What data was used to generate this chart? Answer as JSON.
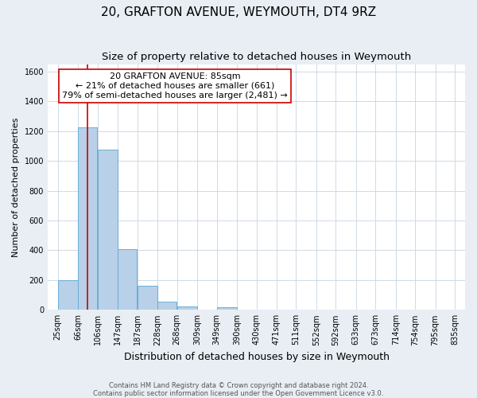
{
  "title": "20, GRAFTON AVENUE, WEYMOUTH, DT4 9RZ",
  "subtitle": "Size of property relative to detached houses in Weymouth",
  "xlabel": "Distribution of detached houses by size in Weymouth",
  "ylabel": "Number of detached properties",
  "footnote1": "Contains HM Land Registry data © Crown copyright and database right 2024.",
  "footnote2": "Contains public sector information licensed under the Open Government Licence v3.0.",
  "bins": [
    25,
    66,
    106,
    147,
    187,
    228,
    268,
    309,
    349,
    390,
    430,
    471,
    511,
    552,
    592,
    633,
    673,
    714,
    754,
    795,
    835
  ],
  "counts": [
    200,
    1225,
    1075,
    410,
    160,
    55,
    25,
    0,
    20,
    0,
    0,
    0,
    0,
    0,
    0,
    0,
    0,
    0,
    0,
    0
  ],
  "bar_color": "#b8d0e8",
  "bar_edge_color": "#6aaed6",
  "property_size": 85,
  "property_line_color": "#cc0000",
  "annotation_title": "20 GRAFTON AVENUE: 85sqm",
  "annotation_line1": "← 21% of detached houses are smaller (661)",
  "annotation_line2": "79% of semi-detached houses are larger (2,481) →",
  "annotation_box_color": "#ffffff",
  "annotation_box_edge_color": "#cc0000",
  "ylim": [
    0,
    1650
  ],
  "yticks": [
    0,
    200,
    400,
    600,
    800,
    1000,
    1200,
    1400,
    1600
  ],
  "background_color": "#e8eef4",
  "plot_background_color": "#ffffff",
  "grid_color": "#c8d4e0",
  "title_fontsize": 11,
  "subtitle_fontsize": 9.5,
  "ylabel_fontsize": 8,
  "xlabel_fontsize": 9,
  "footnote_fontsize": 6,
  "tick_fontsize": 7,
  "annot_fontsize": 8
}
